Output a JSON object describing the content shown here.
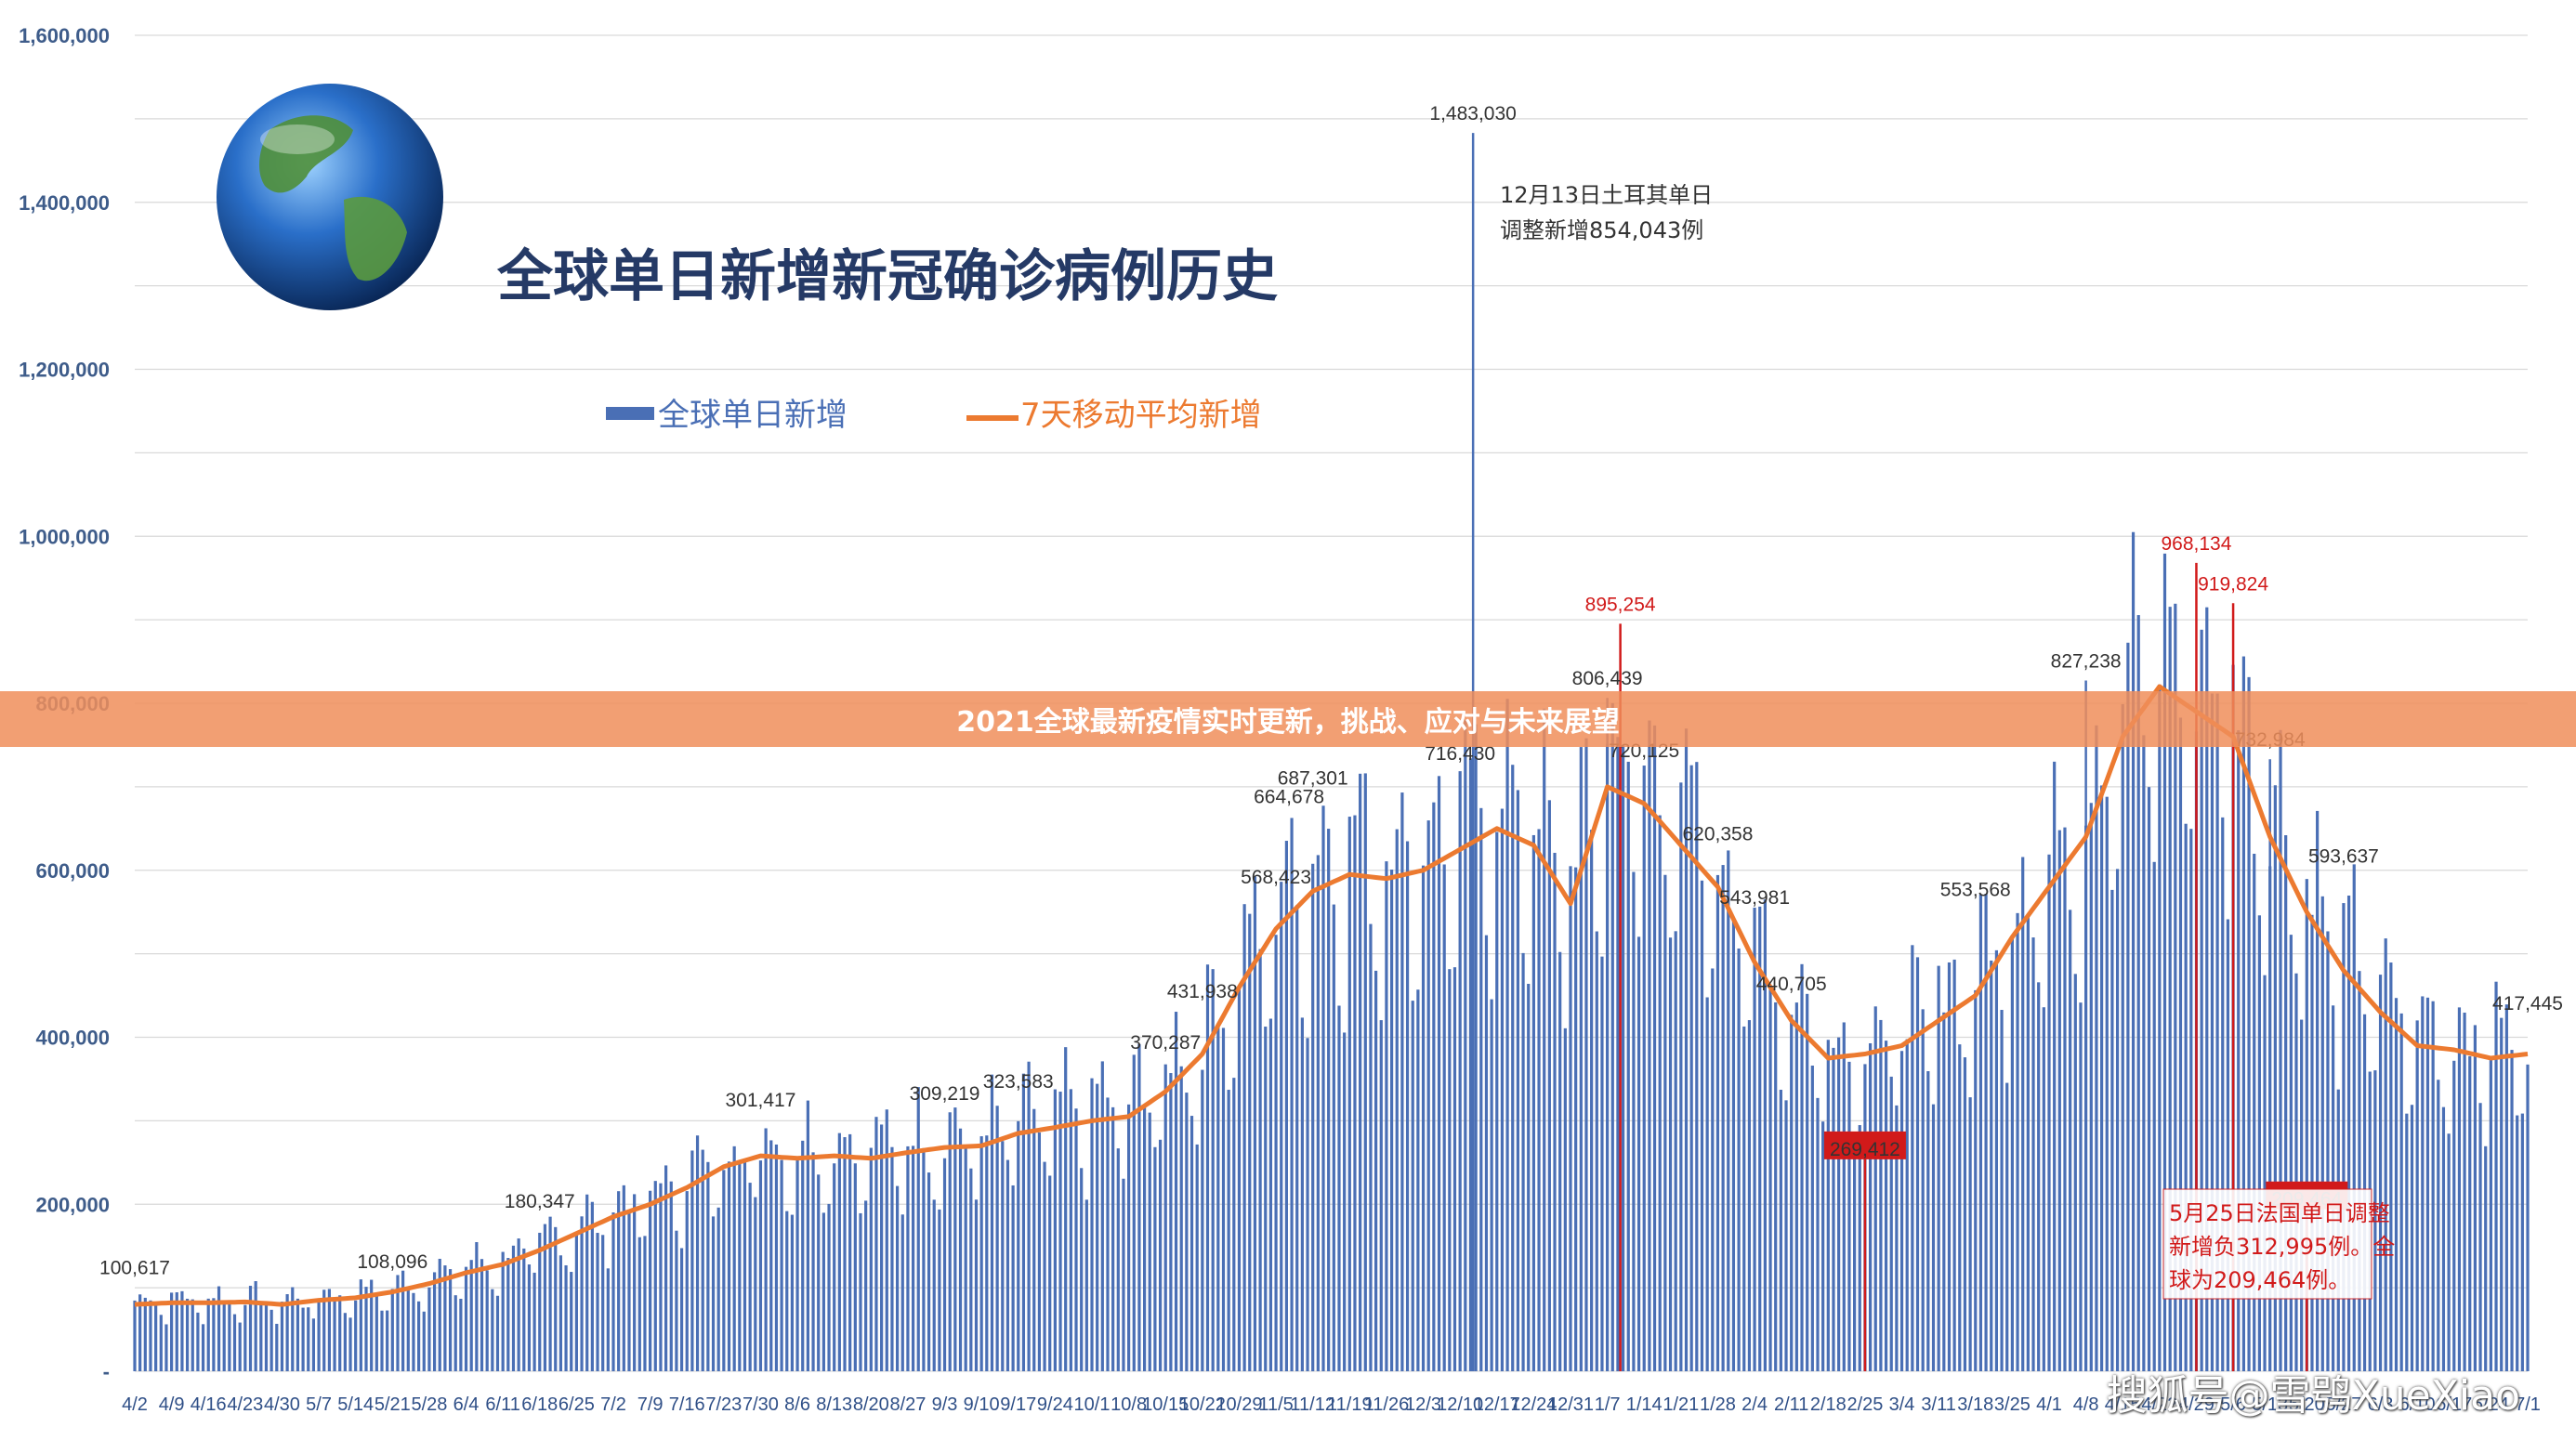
{
  "banner": "2021全球最新疫情实时更新，挑战、应对与未来展望",
  "watermark": "搜狐号@雪鸮XueXiao",
  "colors": {
    "bar": "#4a6fb5",
    "line": "#ec7a30",
    "red": "#d11a1a",
    "grid": "#d9d9d9"
  },
  "chart_data": {
    "type": "bar",
    "title": "全球单日新增新冠确诊病例历史",
    "legend": {
      "bar": "全球单日新增",
      "line": "7天移动平均新增",
      "placement": "top-center"
    },
    "ylim": [
      0,
      1600000
    ],
    "yticks": [
      "-",
      "200,000",
      "400,000",
      "600,000",
      "800,000",
      "1,000,000",
      "1,200,000",
      "1,400,000",
      "1,600,000"
    ],
    "ytick_values": [
      0,
      200000,
      400000,
      600000,
      800000,
      1000000,
      1200000,
      1400000,
      1600000
    ],
    "xticks": [
      "4/2",
      "4/9",
      "4/16",
      "4/23",
      "4/30",
      "5/7",
      "5/14",
      "5/21",
      "5/28",
      "6/4",
      "6/11",
      "6/18",
      "6/25",
      "7/2",
      "7/9",
      "7/16",
      "7/23",
      "7/30",
      "8/6",
      "8/13",
      "8/20",
      "8/27",
      "9/3",
      "9/10",
      "9/17",
      "9/24",
      "10/1",
      "10/8",
      "10/15",
      "10/22",
      "10/29",
      "11/5",
      "11/12",
      "11/19",
      "11/26",
      "12/3",
      "12/10",
      "12/17",
      "12/24",
      "12/31",
      "1/7",
      "1/14",
      "1/21",
      "1/28",
      "2/4",
      "2/11",
      "2/18",
      "2/25",
      "3/4",
      "3/11",
      "3/18",
      "3/25",
      "4/1",
      "4/8",
      "4/15",
      "4/22",
      "4/29",
      "5/6",
      "5/13",
      "5/20",
      "5/27",
      "6/3",
      "6/10",
      "6/17",
      "6/24",
      "7/1"
    ],
    "weekly_avg": [
      80000,
      82000,
      82000,
      83000,
      80000,
      85000,
      88000,
      95000,
      105000,
      118000,
      128000,
      145000,
      165000,
      185000,
      200000,
      220000,
      245000,
      258000,
      255000,
      258000,
      255000,
      262000,
      268000,
      270000,
      285000,
      292000,
      300000,
      305000,
      335000,
      380000,
      460000,
      530000,
      575000,
      595000,
      590000,
      600000,
      625000,
      650000,
      630000,
      560000,
      700000,
      680000,
      630000,
      580000,
      490000,
      420000,
      375000,
      380000,
      390000,
      420000,
      450000,
      520000,
      580000,
      640000,
      760000,
      820000,
      790000,
      760000,
      640000,
      550000,
      480000,
      430000,
      390000,
      385000,
      375000,
      380000
    ],
    "peaks": [
      {
        "x": "4/2",
        "value": 100617,
        "label": "100,617"
      },
      {
        "x": "5/21",
        "value": 108096,
        "label": "108,096"
      },
      {
        "x": "6/18",
        "value": 180347,
        "label": "180,347"
      },
      {
        "x": "7/30",
        "value": 301417,
        "label": "301,417"
      },
      {
        "x": "9/3",
        "value": 309219,
        "label": "309,219"
      },
      {
        "x": "9/17",
        "value": 323583,
        "label": "323,583"
      },
      {
        "x": "10/15",
        "value": 370287,
        "label": "370,287"
      },
      {
        "x": "10/22",
        "value": 431938,
        "label": "431,938"
      },
      {
        "x": "11/5",
        "value": 568423,
        "label": "568,423"
      },
      {
        "x": "11/5",
        "value": 664678,
        "label": "664,678"
      },
      {
        "x": "11/12",
        "value": 687301,
        "label": "687,301"
      },
      {
        "x": "12/10",
        "value": 716430,
        "label": "716,430"
      },
      {
        "x": "12/10",
        "value": 1483030,
        "label": "1,483,030"
      },
      {
        "x": "1/7",
        "value": 806439,
        "label": "806,439"
      },
      {
        "x": "1/7",
        "value": 895254,
        "label": "895,254",
        "red": true
      },
      {
        "x": "1/14",
        "value": 720125,
        "label": "720,125"
      },
      {
        "x": "1/28",
        "value": 620358,
        "label": "620,358"
      },
      {
        "x": "2/4",
        "value": 543981,
        "label": "543,981"
      },
      {
        "x": "2/11",
        "value": 440705,
        "label": "440,705"
      },
      {
        "x": "2/25",
        "value": 269412,
        "label": "269,412",
        "red": true
      },
      {
        "x": "3/18",
        "value": 553568,
        "label": "553,568"
      },
      {
        "x": "4/8",
        "value": 827238,
        "label": "827,238"
      },
      {
        "x": "4/29",
        "value": 968134,
        "label": "968,134",
        "red": true
      },
      {
        "x": "5/6",
        "value": 919824,
        "label": "919,824",
        "red": true
      },
      {
        "x": "5/13",
        "value": 732984,
        "label": "732,984"
      },
      {
        "x": "5/27",
        "value": 593637,
        "label": "593,637"
      },
      {
        "x": "5/20",
        "value": 209464,
        "label": "209,464",
        "red": true
      },
      {
        "x": "7/1",
        "value": 417445,
        "label": "417,445"
      }
    ],
    "annotations": [
      {
        "text1": "12月13日土耳其单日",
        "text2": "调整新增854,043例",
        "text3": "",
        "color": "#333333"
      },
      {
        "text1": "5月25日法国单日调整",
        "text2": "新增负312,995例。全",
        "text3": "球为209,464例。",
        "color": "#d11a1a"
      }
    ],
    "grid": true
  }
}
